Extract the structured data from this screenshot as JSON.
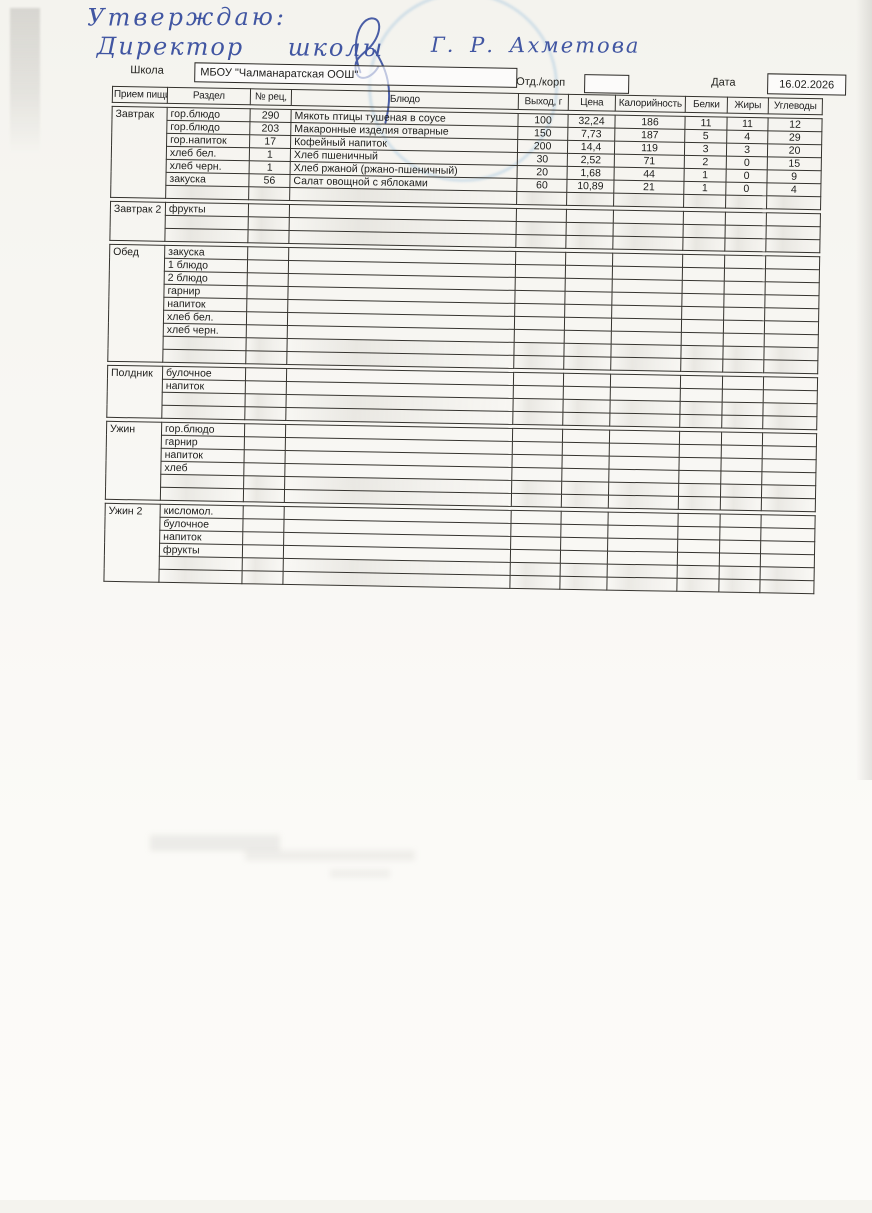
{
  "handwriting": {
    "approval": "Утверждаю:",
    "director_title": "Директор школы",
    "director_name": "Г. Р. Ахметова"
  },
  "form": {
    "school_label": "Школа",
    "school_value": "МБОУ \"Чалманаратская ООШ\"",
    "dept_label": "Отд./корп",
    "dept_value": "",
    "date_label": "Дата",
    "date_value": "16.02.2026"
  },
  "table": {
    "headers": [
      "Прием пищи",
      "Раздел",
      "№ рец,",
      "Блюдо",
      "Выход, г",
      "Цена",
      "Калорийность",
      "Белки",
      "Жиры",
      "Углеводы"
    ],
    "sections": [
      {
        "meal": "Завтрак",
        "rows": [
          [
            "гор.блюдо",
            "290",
            "Мякоть птицы тушеная в соусе",
            "100",
            "32,24",
            "186",
            "11",
            "11",
            "12"
          ],
          [
            "гор.блюдо",
            "203",
            "Макаронные изделия отварные",
            "150",
            "7,73",
            "187",
            "5",
            "4",
            "29"
          ],
          [
            "гор.напиток",
            "17",
            "Кофейный напиток",
            "200",
            "14,4",
            "119",
            "3",
            "3",
            "20"
          ],
          [
            "хлеб бел.",
            "1",
            "Хлеб пшеничный",
            "30",
            "2,52",
            "71",
            "2",
            "0",
            "15"
          ],
          [
            "хлеб черн.",
            "1",
            "Хлеб ржаной (ржано-пшеничный)",
            "20",
            "1,68",
            "44",
            "1",
            "0",
            "9"
          ],
          [
            "закуска",
            "56",
            "Салат овощной с яблоками",
            "60",
            "10,89",
            "21",
            "1",
            "0",
            "4"
          ],
          [
            "",
            "",
            "",
            "",
            "",
            "",
            "",
            "",
            ""
          ]
        ]
      },
      {
        "meal": "Завтрак 2",
        "rows": [
          [
            "фрукты",
            "",
            "",
            "",
            "",
            "",
            "",
            "",
            ""
          ],
          [
            "",
            "",
            "",
            "",
            "",
            "",
            "",
            "",
            ""
          ],
          [
            "",
            "",
            "",
            "",
            "",
            "",
            "",
            "",
            ""
          ]
        ]
      },
      {
        "meal": "Обед",
        "rows": [
          [
            "закуска",
            "",
            "",
            "",
            "",
            "",
            "",
            "",
            ""
          ],
          [
            "1 блюдо",
            "",
            "",
            "",
            "",
            "",
            "",
            "",
            ""
          ],
          [
            "2 блюдо",
            "",
            "",
            "",
            "",
            "",
            "",
            "",
            ""
          ],
          [
            "гарнир",
            "",
            "",
            "",
            "",
            "",
            "",
            "",
            ""
          ],
          [
            "напиток",
            "",
            "",
            "",
            "",
            "",
            "",
            "",
            ""
          ],
          [
            "хлеб бел.",
            "",
            "",
            "",
            "",
            "",
            "",
            "",
            ""
          ],
          [
            "хлеб черн.",
            "",
            "",
            "",
            "",
            "",
            "",
            "",
            ""
          ],
          [
            "",
            "",
            "",
            "",
            "",
            "",
            "",
            "",
            ""
          ],
          [
            "",
            "",
            "",
            "",
            "",
            "",
            "",
            "",
            ""
          ]
        ]
      },
      {
        "meal": "Полдник",
        "rows": [
          [
            "булочное",
            "",
            "",
            "",
            "",
            "",
            "",
            "",
            ""
          ],
          [
            "напиток",
            "",
            "",
            "",
            "",
            "",
            "",
            "",
            ""
          ],
          [
            "",
            "",
            "",
            "",
            "",
            "",
            "",
            "",
            ""
          ],
          [
            "",
            "",
            "",
            "",
            "",
            "",
            "",
            "",
            ""
          ]
        ]
      },
      {
        "meal": "Ужин",
        "rows": [
          [
            "гор.блюдо",
            "",
            "",
            "",
            "",
            "",
            "",
            "",
            ""
          ],
          [
            "гарнир",
            "",
            "",
            "",
            "",
            "",
            "",
            "",
            ""
          ],
          [
            "напиток",
            "",
            "",
            "",
            "",
            "",
            "",
            "",
            ""
          ],
          [
            "хлеб",
            "",
            "",
            "",
            "",
            "",
            "",
            "",
            ""
          ],
          [
            "",
            "",
            "",
            "",
            "",
            "",
            "",
            "",
            ""
          ],
          [
            "",
            "",
            "",
            "",
            "",
            "",
            "",
            "",
            ""
          ]
        ]
      },
      {
        "meal": "Ужин 2",
        "rows": [
          [
            "кисломол.",
            "",
            "",
            "",
            "",
            "",
            "",
            "",
            ""
          ],
          [
            "булочное",
            "",
            "",
            "",
            "",
            "",
            "",
            "",
            ""
          ],
          [
            "напиток",
            "",
            "",
            "",
            "",
            "",
            "",
            "",
            ""
          ],
          [
            "фрукты",
            "",
            "",
            "",
            "",
            "",
            "",
            "",
            ""
          ],
          [
            "",
            "",
            "",
            "",
            "",
            "",
            "",
            "",
            ""
          ],
          [
            "",
            "",
            "",
            "",
            "",
            "",
            "",
            "",
            ""
          ]
        ]
      }
    ]
  }
}
